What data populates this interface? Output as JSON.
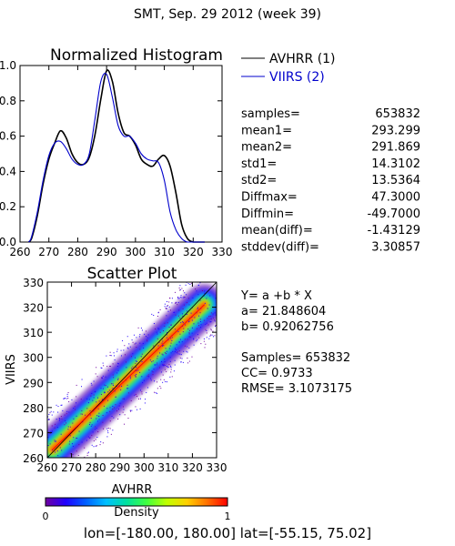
{
  "header": {
    "title": "SMT,  Sep. 29 2012 (week 39)"
  },
  "colors": {
    "avhrr": "#000000",
    "viirs": "#0000cc",
    "fit_line": "#ff0000",
    "diag_line": "#000000"
  },
  "histogram": {
    "title": "Normalized Histogram",
    "legend": [
      {
        "label": "AVHRR (1)",
        "color": "#000000"
      },
      {
        "label": "VIIRS (2)",
        "color": "#0000cc"
      }
    ]
  },
  "stats": [
    {
      "label": "samples=",
      "value": "653832"
    },
    {
      "label": "mean1=",
      "value": "293.299"
    },
    {
      "label": "mean2=",
      "value": "291.869"
    },
    {
      "label": "std1=",
      "value": "14.3102"
    },
    {
      "label": "std2=",
      "value": "13.5364"
    },
    {
      "label": "Diffmax=",
      "value": "47.3000"
    },
    {
      "label": "Diffmin=",
      "value": "-49.7000"
    },
    {
      "label": "mean(diff)=",
      "value": "-1.43129"
    },
    {
      "label": "stddev(diff)=",
      "value": "3.30857"
    }
  ],
  "scatter": {
    "title": "Scatter Plot",
    "fit_text": [
      "Y= a +b * X",
      "a= 21.848604",
      "b= 0.92062756",
      "",
      "Samples= 653832",
      "CC=  0.9733",
      "RMSE= 3.1073175"
    ]
  },
  "colorbar": {
    "label": "Density",
    "min_label": "0",
    "max_label": "1",
    "colors": [
      "#7000a0",
      "#2000ff",
      "#0060ff",
      "#00c0ff",
      "#00e0a0",
      "#40ff40",
      "#c0ff00",
      "#ffd000",
      "#ff7000",
      "#ff0000"
    ]
  },
  "footer": {
    "text": "lon=[-180.00, 180.00] lat=[-55.15, 75.02]"
  },
  "chart_data": [
    {
      "type": "line",
      "title": "Normalized Histogram",
      "xlim": [
        260,
        330
      ],
      "ylim": [
        0,
        1
      ],
      "xticks": [
        260,
        270,
        280,
        290,
        300,
        310,
        320,
        330
      ],
      "yticks": [
        0.0,
        0.2,
        0.4,
        0.6,
        0.8,
        1.0
      ],
      "xtick_labels": [
        "260",
        "270",
        "280",
        "290",
        "300",
        "310",
        "320",
        "330"
      ],
      "ytick_labels": [
        "0.0",
        "0.2",
        "0.4",
        "0.6",
        "0.8",
        "1.0"
      ],
      "series": [
        {
          "name": "AVHRR (1)",
          "x": [
            263,
            264,
            266,
            268,
            270,
            272,
            274,
            276,
            278,
            280,
            282,
            284,
            286,
            288,
            290,
            292,
            294,
            296,
            298,
            300,
            302,
            304,
            306,
            308,
            310,
            312,
            314,
            316,
            318,
            320,
            322,
            324
          ],
          "y": [
            0.0,
            0.02,
            0.15,
            0.33,
            0.47,
            0.56,
            0.63,
            0.59,
            0.5,
            0.45,
            0.44,
            0.48,
            0.61,
            0.81,
            0.97,
            0.91,
            0.73,
            0.62,
            0.6,
            0.55,
            0.47,
            0.44,
            0.43,
            0.47,
            0.49,
            0.43,
            0.28,
            0.1,
            0.02,
            0.0,
            0.0,
            0.0
          ]
        },
        {
          "name": "VIIRS (2)",
          "x": [
            263,
            264,
            266,
            268,
            270,
            272,
            274,
            276,
            278,
            280,
            282,
            284,
            286,
            288,
            290,
            292,
            294,
            296,
            298,
            300,
            302,
            304,
            306,
            308,
            310,
            312,
            314,
            316,
            318,
            320,
            322,
            324
          ],
          "y": [
            0.0,
            0.03,
            0.17,
            0.35,
            0.49,
            0.56,
            0.57,
            0.53,
            0.47,
            0.44,
            0.44,
            0.5,
            0.7,
            0.91,
            0.95,
            0.82,
            0.66,
            0.6,
            0.6,
            0.56,
            0.5,
            0.47,
            0.46,
            0.45,
            0.35,
            0.17,
            0.07,
            0.02,
            0.0,
            0.0,
            0.0,
            0.0
          ]
        }
      ]
    },
    {
      "type": "scatter",
      "title": "Scatter Plot",
      "xlabel": "AVHRR",
      "ylabel": "VIIRS",
      "xlim": [
        260,
        330
      ],
      "ylim": [
        260,
        330
      ],
      "xticks": [
        260,
        270,
        280,
        290,
        300,
        310,
        320,
        330
      ],
      "yticks": [
        260,
        270,
        280,
        290,
        300,
        310,
        320,
        330
      ],
      "xtick_labels": [
        "260",
        "270",
        "280",
        "290",
        "300",
        "310",
        "320",
        "330"
      ],
      "ytick_labels": [
        "260",
        "270",
        "280",
        "290",
        "300",
        "310",
        "320",
        "330"
      ],
      "fit": {
        "a": 21.848604,
        "b": 0.92062756
      },
      "density_range": [
        262,
        325
      ]
    }
  ]
}
